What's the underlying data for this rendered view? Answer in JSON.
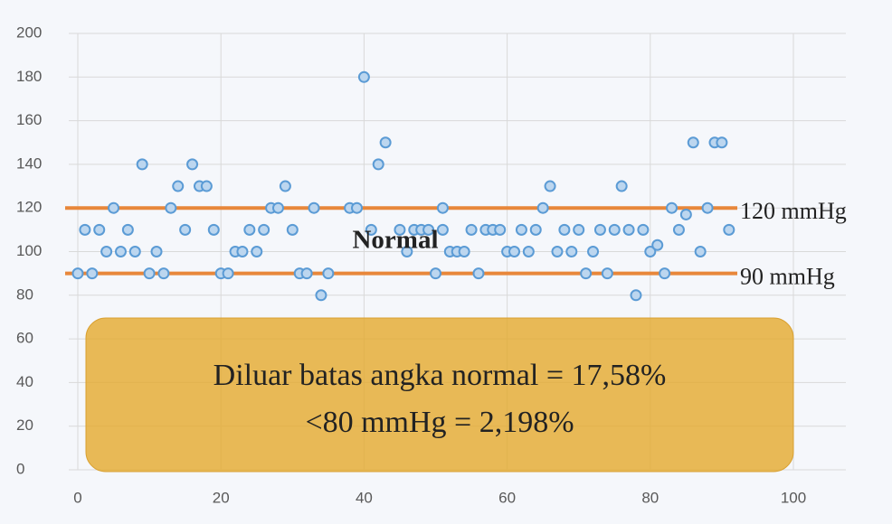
{
  "chart_data": {
    "type": "scatter",
    "x": [
      0,
      1,
      2,
      3,
      4,
      5,
      6,
      7,
      8,
      9,
      10,
      11,
      12,
      13,
      14,
      15,
      16,
      17,
      18,
      19,
      20,
      21,
      22,
      23,
      24,
      25,
      26,
      27,
      28,
      29,
      30,
      31,
      32,
      33,
      34,
      35,
      38,
      39,
      40,
      41,
      42,
      43,
      45,
      46,
      47,
      48,
      49,
      50,
      51,
      51,
      52,
      53,
      54,
      55,
      56,
      57,
      58,
      59,
      60,
      61,
      62,
      63,
      64,
      65,
      66,
      67,
      68,
      69,
      70,
      71,
      72,
      73,
      74,
      75,
      76,
      77,
      78,
      79,
      80,
      81,
      82,
      83,
      84,
      85,
      86,
      87,
      88,
      89,
      90,
      91
    ],
    "series": [
      {
        "color": "#5b9bd5",
        "values": [
          90,
          110,
          90,
          110,
          100,
          120,
          100,
          110,
          100,
          140,
          90,
          100,
          90,
          120,
          130,
          110,
          140,
          130,
          130,
          110,
          90,
          90,
          100,
          100,
          110,
          100,
          110,
          120,
          120,
          130,
          110,
          90,
          90,
          120,
          80,
          90,
          120,
          120,
          180,
          110,
          140,
          150,
          110,
          100,
          110,
          110,
          110,
          90,
          120,
          110,
          100,
          100,
          100,
          110,
          90,
          110,
          110,
          110,
          100,
          100,
          110,
          100,
          110,
          120,
          130,
          100,
          110,
          100,
          110,
          90,
          100,
          110,
          90,
          110,
          130,
          110,
          80,
          110,
          100,
          103,
          90,
          120,
          110,
          117,
          150,
          100,
          120,
          150,
          150,
          110
        ]
      }
    ],
    "xlim": [
      0,
      100
    ],
    "xticks": [
      0,
      20,
      40,
      60,
      80,
      100
    ],
    "ylim": [
      0,
      200
    ],
    "yticks": [
      0,
      20,
      40,
      60,
      80,
      100,
      120,
      140,
      160,
      180,
      200
    ],
    "grid": true,
    "reference_lines": [
      {
        "value": 120,
        "label": "120 mmHg",
        "color": "#e8873a"
      },
      {
        "value": 90,
        "label": "90 mmHg",
        "color": "#e8873a"
      }
    ],
    "range_label": "Normal",
    "notes": [
      "Diluar batas angka normal = 17,58%",
      "<80 mmHg = 2,198%"
    ]
  }
}
